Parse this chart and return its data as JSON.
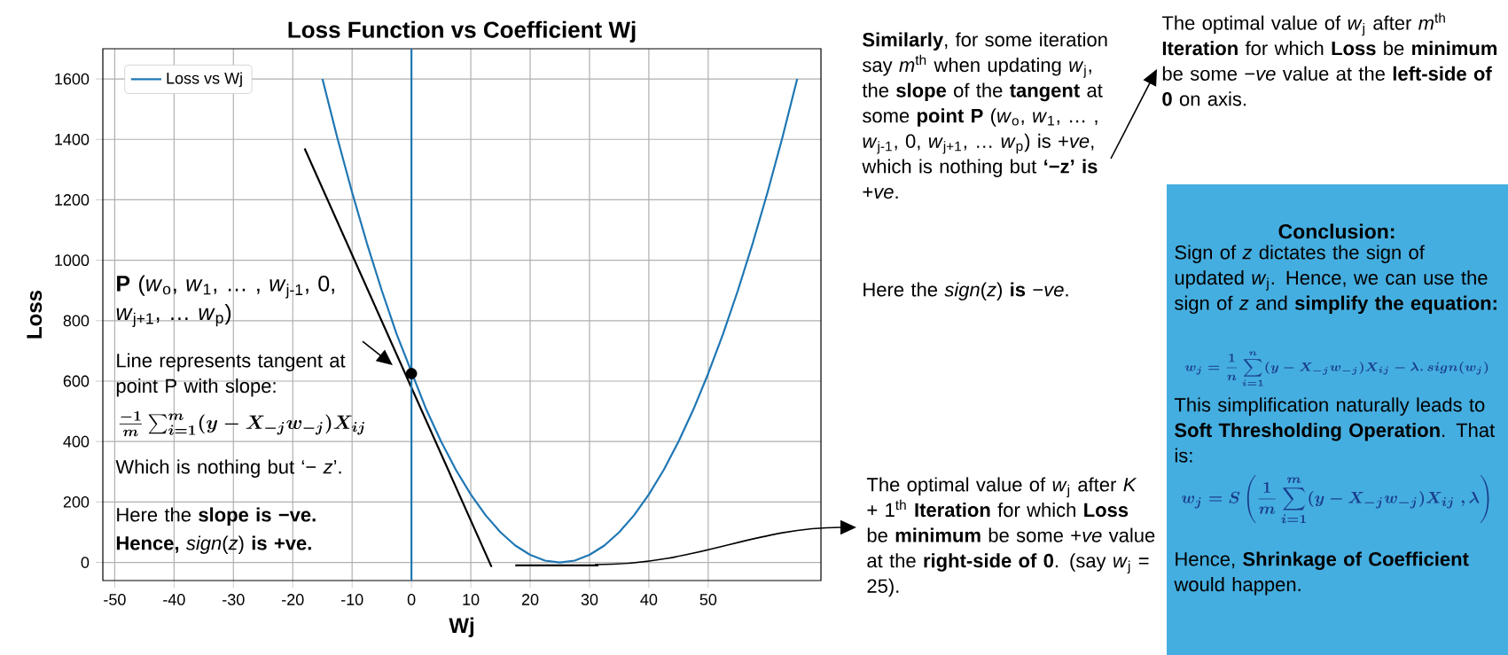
{
  "chart_data": {
    "type": "line",
    "title": "Loss Function vs Coefficient Wj",
    "xlabel": "Wj",
    "ylabel": "Loss",
    "xlim": [
      -52,
      69
    ],
    "ylim": [
      -60,
      1700
    ],
    "xticks": [
      -50,
      -40,
      -30,
      -20,
      -10,
      0,
      10,
      20,
      30,
      40,
      50
    ],
    "yticks": [
      0,
      200,
      400,
      600,
      800,
      1000,
      1200,
      1400,
      1600
    ],
    "grid": true,
    "legend": "top left",
    "series": [
      {
        "name": "Loss vs Wj",
        "color": "#1f77b4",
        "x": [
          -15,
          -12.5,
          -10,
          -7.5,
          -5,
          -2.5,
          2.5,
          5,
          7.5,
          10,
          12.5,
          15,
          17.5,
          20,
          22.5,
          25,
          27.5,
          30,
          32.5,
          35,
          37.5,
          40,
          42.5,
          45,
          47.5,
          50,
          52.5,
          55,
          57.5,
          60,
          62.5,
          65
        ],
        "values": [
          1600,
          1406,
          1225,
          1056,
          900,
          756,
          506,
          400,
          306,
          225,
          156,
          100,
          56,
          25,
          6,
          0,
          6,
          25,
          56,
          100,
          156,
          225,
          306,
          400,
          506,
          625,
          756,
          900,
          1056,
          1225,
          1406,
          1600
        ]
      },
      {
        "color": "#000000",
        "x": [
          -18,
          13.5
        ],
        "values": [
          1370,
          -15
        ]
      },
      {
        "color": "#000000",
        "x": [
          17.5,
          31.5
        ],
        "values": [
          -10,
          -10
        ]
      },
      {
        "type": "scatter",
        "marker": "circle",
        "color": "#000000",
        "x": [
          0
        ],
        "values": [
          625
        ]
      }
    ],
    "ref_lines": [
      {
        "axis": "x",
        "value": 0,
        "color": "#1f77b4"
      }
    ],
    "annotations": [
      "**P** (*w*$_{o}$, *w*$_{1}$, … , *w*$_{j-1}$, 0, *w*$_{j+1}$, … *w*$_{p}$)",
      "Line represents tangent at point P with slope:",
      "\\boldsymbol{\\frac{-1}{m}\\sum_{i=1}^{m}(y - X_{-j}w_{-j})X_{ij}}",
      "Which is nothing but ‘− *z*’.",
      "Here the **slope is −ve.**",
      "**Hence,** *sign*(*z*) **is +ve.**",
      "**Similarly**, for some iteration say *m*$^{th}$ when updating *w*$_{j}$, the **slope** of the **tangent** at some **point P** (*w*$_{o}$, *w*$_{1}$, … , *w*$_{j-1}$, 0, *w*$_{j+1}$, … *w*$_{p}$) is +*ve*, which is nothing but **‘−z’ is** +*ve*.",
      "Here the *sign*(*z*) **is** −*ve*.",
      "The optimal value of *w*$_{j}$ after *m*$^{th}$ **Iteration** for which **Loss** be **minimum** be some −*ve* value at the **left-side of 0** on axis.",
      "The optimal value of *w*$_{j}$ after *K* + 1$^{th}$ **Iteration** for which **Loss** be **minimum** be some +*ve* value at the **right-side of 0**.  (say *w*$_{j}$ = 25).",
      "**Conclusion:**",
      "Sign of *z* dictates the sign of updated *w*$_{j}$. Hence, we can use the sign of *z* and **simplify the equation:**",
      "\\boldsymbol{w_j = \\frac{1}{n}\\sum_{i=1}^{n}(y - X_{-j}w_{-j})X_{ij} - \\lambda.\\,sign(w_j)}",
      "This simplification naturally leads to **Soft Thresholding Operation**. That is:",
      "\\boldsymbol{w_j = S\\left(\\frac{1}{m}\\sum_{i=1}^{m}(y - X_{-j}w_{-j})X_{ij}\\;,\\lambda\\right)}",
      "Hence, **Shrinkage of Coefficient** would happen."
    ]
  }
}
